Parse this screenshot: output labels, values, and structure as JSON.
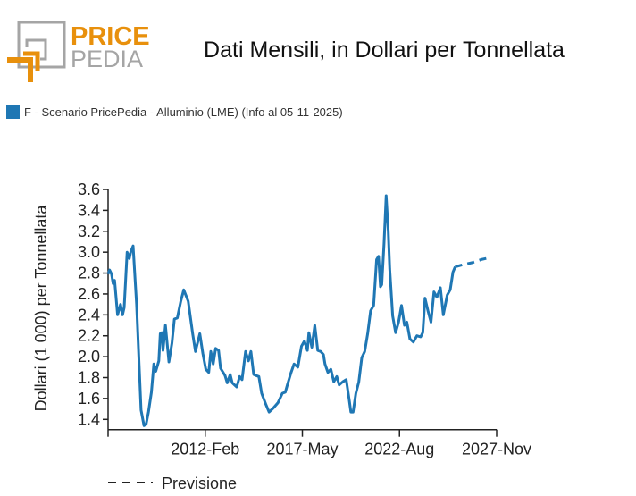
{
  "logo": {
    "line1": "PRICE",
    "line2": "PEDIA",
    "accent": "#e8900c",
    "gray": "#a5a5a5"
  },
  "title": "Dati Mensili, in Dollari per Tonnellata",
  "legend": {
    "label": "F - Scenario PricePedia - Alluminio (LME) (Info al 05-11-2025)",
    "color": "#1f77b4"
  },
  "chart_data": {
    "type": "line",
    "title": "Dati Mensili, in Dollari per Tonnellata",
    "xlabel": "",
    "ylabel": "Dollari (1 000) per Tonnellata",
    "xlim": [
      2006.83,
      2027.83
    ],
    "ylim": [
      1.3,
      3.6
    ],
    "yticks": [
      1.4,
      1.6,
      1.8,
      2.0,
      2.2,
      2.4,
      2.6,
      2.8,
      3.0,
      3.2,
      3.4,
      3.6
    ],
    "ytick_labels": [
      "1.4",
      "1.6",
      "1.8",
      "2.0",
      "2.2",
      "2.4",
      "2.6",
      "2.8",
      "3.0",
      "3.2",
      "3.4",
      "3.6"
    ],
    "xticks": [
      2012.08,
      2017.33,
      2022.58,
      2027.83
    ],
    "xtick_labels": [
      "2012-Feb",
      "2017-May",
      "2022-Aug",
      "2027-Nov"
    ],
    "color": "#1f77b4",
    "series": [
      {
        "name": "F - Scenario PricePedia - Alluminio (LME) (Info al 05-11-2025)",
        "style": "solid",
        "x": [
          2006.83,
          2006.91,
          2007.02,
          2007.1,
          2007.18,
          2007.34,
          2007.5,
          2007.61,
          2007.7,
          2007.86,
          2007.98,
          2008.05,
          2008.18,
          2008.37,
          2008.61,
          2008.77,
          2008.88,
          2009.01,
          2009.17,
          2009.3,
          2009.41,
          2009.57,
          2009.65,
          2009.73,
          2009.8,
          2009.93,
          2010.12,
          2010.28,
          2010.41,
          2010.57,
          2010.76,
          2010.92,
          2011.16,
          2011.4,
          2011.55,
          2011.79,
          2011.95,
          2012.11,
          2012.27,
          2012.38,
          2012.51,
          2012.64,
          2012.8,
          2012.91,
          2013.15,
          2013.27,
          2013.43,
          2013.54,
          2013.78,
          2013.94,
          2014.07,
          2014.26,
          2014.42,
          2014.55,
          2014.7,
          2014.82,
          2014.98,
          2015.13,
          2015.34,
          2015.53,
          2015.77,
          2016.01,
          2016.25,
          2016.41,
          2016.52,
          2016.72,
          2016.88,
          2017.09,
          2017.28,
          2017.44,
          2017.6,
          2017.68,
          2017.84,
          2018.0,
          2018.16,
          2018.32,
          2018.47,
          2018.55,
          2018.71,
          2018.87,
          2019.03,
          2019.19,
          2019.32,
          2019.51,
          2019.7,
          2019.86,
          2019.95,
          2020.07,
          2020.22,
          2020.38,
          2020.54,
          2020.7,
          2020.86,
          2021.02,
          2021.18,
          2021.34,
          2021.45,
          2021.55,
          2021.62,
          2021.74,
          2021.86,
          2021.97,
          2022.05,
          2022.21,
          2022.37,
          2022.53,
          2022.69,
          2022.85,
          2022.98,
          2023.14,
          2023.33,
          2023.52,
          2023.72,
          2023.84,
          2023.96,
          2024.12,
          2024.28,
          2024.44,
          2024.6,
          2024.79,
          2024.95,
          2025.16,
          2025.32,
          2025.47,
          2025.59
        ],
        "y": [
          2.79,
          2.83,
          2.79,
          2.7,
          2.73,
          2.4,
          2.5,
          2.4,
          2.47,
          3.0,
          2.94,
          3.0,
          3.06,
          2.5,
          1.49,
          1.34,
          1.35,
          1.47,
          1.66,
          1.93,
          1.86,
          1.96,
          2.22,
          2.23,
          2.06,
          2.3,
          1.95,
          2.13,
          2.36,
          2.37,
          2.53,
          2.64,
          2.53,
          2.22,
          2.05,
          2.22,
          2.03,
          1.88,
          1.85,
          2.05,
          1.93,
          2.08,
          2.06,
          1.89,
          1.82,
          1.75,
          1.83,
          1.75,
          1.71,
          1.81,
          1.78,
          2.05,
          1.96,
          2.05,
          1.83,
          1.82,
          1.81,
          1.65,
          1.55,
          1.47,
          1.51,
          1.56,
          1.65,
          1.66,
          1.73,
          1.85,
          1.93,
          1.9,
          2.1,
          2.15,
          2.06,
          2.23,
          2.09,
          2.3,
          2.06,
          2.05,
          2.02,
          1.93,
          1.85,
          1.88,
          1.76,
          1.81,
          1.73,
          1.76,
          1.78,
          1.59,
          1.47,
          1.47,
          1.65,
          1.76,
          1.99,
          2.05,
          2.22,
          2.44,
          2.49,
          2.93,
          2.96,
          2.67,
          2.69,
          3.08,
          3.54,
          3.21,
          2.84,
          2.39,
          2.23,
          2.33,
          2.49,
          2.3,
          2.33,
          2.17,
          2.14,
          2.2,
          2.19,
          2.23,
          2.56,
          2.44,
          2.33,
          2.62,
          2.57,
          2.66,
          2.4,
          2.59,
          2.64,
          2.81,
          2.86
        ]
      },
      {
        "name": "Previsione",
        "style": "dashed",
        "x": [
          2025.59,
          2026.0,
          2026.51,
          2027.0,
          2027.54
        ],
        "y": [
          2.86,
          2.88,
          2.9,
          2.93,
          2.95
        ]
      }
    ],
    "legend_entries": [
      "F - Scenario PricePedia - Alluminio (LME) (Info al 05-11-2025)",
      "Previsione"
    ],
    "legend_placement": "top-left / bottom",
    "grid": false
  },
  "forecast_legend": {
    "label": "Previsione"
  }
}
